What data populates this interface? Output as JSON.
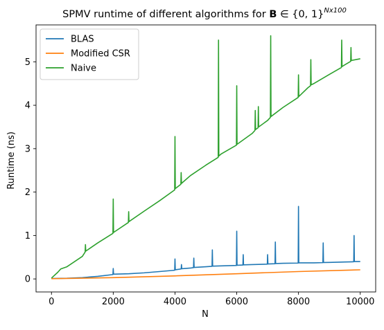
{
  "chart_data": {
    "type": "line",
    "title_prefix": "SPMV runtime of different algorithms for ",
    "title_bold": "B",
    "title_set": " ∈ {0, 1}",
    "title_sup": "Nx100",
    "xlabel": "N",
    "ylabel": "Runtime (ns)",
    "y_multiplier": "1e6",
    "xlim": [
      -500,
      10500
    ],
    "ylim": [
      -300000,
      5850000
    ],
    "x_ticks": [
      0,
      2000,
      4000,
      6000,
      8000,
      10000
    ],
    "x_tick_labels": [
      "0",
      "2000",
      "4000",
      "6000",
      "8000",
      "10000"
    ],
    "y_ticks": [
      0,
      1000000,
      2000000,
      3000000,
      4000000,
      5000000
    ],
    "y_tick_labels": [
      "0",
      "1",
      "2",
      "3",
      "4",
      "5"
    ],
    "legend_location": "upper left",
    "series": [
      {
        "name": "BLAS",
        "color": "#1f77b4",
        "x": [
          0,
          500,
          1000,
          1500,
          1990,
          2000,
          2010,
          2500,
          3000,
          3500,
          3990,
          4000,
          4010,
          4200,
          4210,
          4220,
          4500,
          4600,
          4610,
          4620,
          5000,
          5200,
          5210,
          5220,
          5500,
          5990,
          6000,
          6010,
          6200,
          6210,
          6220,
          6500,
          6990,
          7000,
          7010,
          7240,
          7250,
          7260,
          7500,
          7990,
          8000,
          8010,
          8500,
          8790,
          8800,
          8810,
          9000,
          9500,
          9790,
          9800,
          9810,
          10000
        ],
        "values": [
          10000,
          15000,
          30000,
          60000,
          100000,
          240000,
          110000,
          120000,
          140000,
          170000,
          200000,
          460000,
          210000,
          230000,
          330000,
          235000,
          250000,
          260000,
          480000,
          265000,
          280000,
          290000,
          670000,
          295000,
          300000,
          310000,
          1100000,
          315000,
          320000,
          560000,
          325000,
          330000,
          340000,
          560000,
          345000,
          350000,
          850000,
          355000,
          360000,
          365000,
          1670000,
          370000,
          370000,
          375000,
          830000,
          378000,
          380000,
          390000,
          395000,
          1000000,
          400000,
          400000
        ]
      },
      {
        "name": "Modified CSR",
        "color": "#ff7f0e",
        "x": [
          0,
          2000,
          4000,
          6000,
          8000,
          10000
        ],
        "values": [
          5000,
          30000,
          70000,
          120000,
          170000,
          210000
        ]
      },
      {
        "name": "Naive",
        "color": "#2ca02c",
        "x": [
          0,
          200,
          300,
          500,
          1000,
          1090,
          1100,
          1110,
          1500,
          1990,
          2000,
          2010,
          2490,
          2500,
          2510,
          3000,
          3500,
          3990,
          4000,
          4010,
          4190,
          4200,
          4210,
          4500,
          5000,
          5400,
          5410,
          5420,
          5500,
          5990,
          6000,
          6010,
          6500,
          6590,
          6600,
          6610,
          6690,
          6700,
          6710,
          7000,
          7090,
          7100,
          7110,
          7500,
          7990,
          8000,
          8010,
          8300,
          8390,
          8400,
          8410,
          8500,
          9000,
          9390,
          9400,
          9410,
          9500,
          9690,
          9700,
          9710,
          10000
        ],
        "values": [
          20000,
          150000,
          230000,
          280000,
          520000,
          620000,
          790000,
          640000,
          830000,
          1050000,
          1840000,
          1070000,
          1300000,
          1550000,
          1320000,
          1560000,
          1800000,
          2050000,
          3280000,
          2080000,
          2180000,
          2450000,
          2200000,
          2380000,
          2620000,
          2800000,
          5500000,
          2830000,
          2880000,
          3080000,
          4450000,
          3100000,
          3350000,
          3420000,
          3880000,
          3440000,
          3480000,
          3970000,
          3500000,
          3650000,
          3720000,
          5600000,
          3740000,
          3950000,
          4180000,
          4700000,
          4200000,
          4400000,
          4450000,
          5050000,
          4470000,
          4500000,
          4710000,
          4870000,
          5500000,
          4890000,
          4930000,
          5010000,
          5330000,
          5030000,
          5070000
        ]
      }
    ]
  }
}
